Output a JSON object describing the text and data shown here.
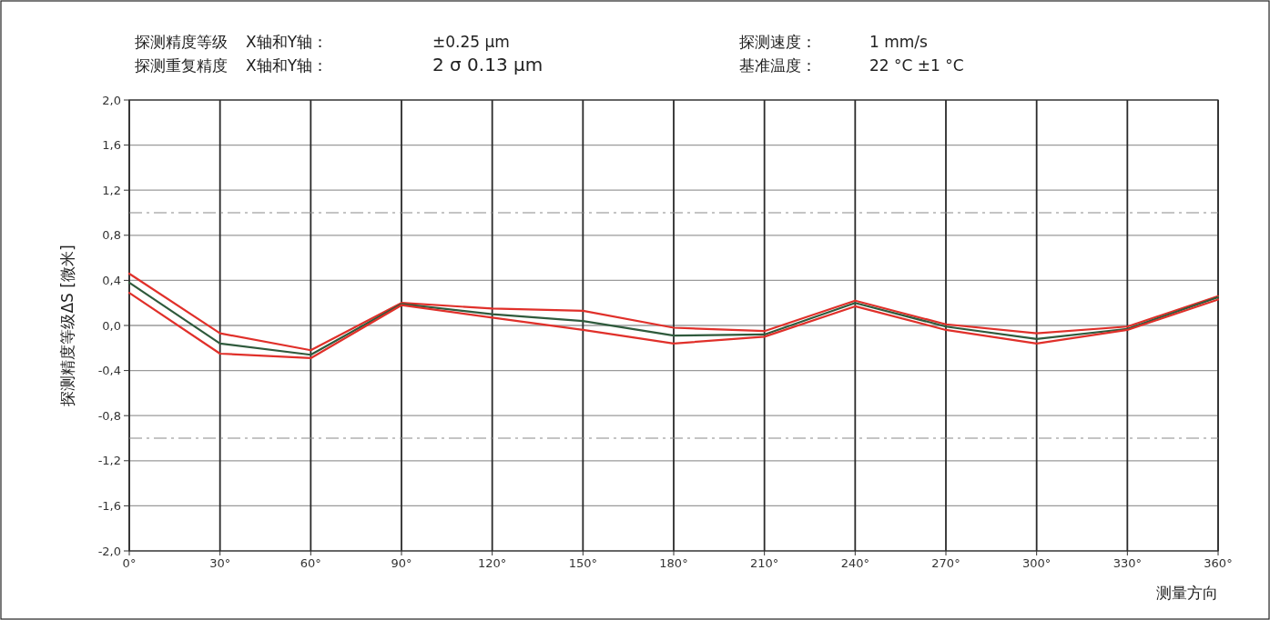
{
  "chart_data": {
    "type": "line",
    "xlabel": "测量方向",
    "ylabel": "探测精度等级ΔS [微米]",
    "annotations": [
      "探测精度等级",
      "X轴和Y轴：",
      "±0.25 µm",
      "探测速度：",
      "1 mm/s",
      "探测重复精度",
      "X轴和Y轴：",
      "2 σ 0.13 µm",
      "基准温度：",
      "22 °C ±1 °C"
    ],
    "x": [
      0,
      30,
      60,
      90,
      120,
      150,
      180,
      210,
      240,
      270,
      300,
      330,
      360
    ],
    "series": [
      {
        "color": "#e0302a",
        "values": [
          0.46,
          -0.07,
          -0.22,
          0.2,
          0.15,
          0.13,
          -0.02,
          -0.05,
          0.22,
          0.01,
          -0.07,
          -0.01,
          0.26
        ]
      },
      {
        "color": "#2f5a3c",
        "values": [
          0.38,
          -0.16,
          -0.26,
          0.19,
          0.1,
          0.04,
          -0.09,
          -0.08,
          0.2,
          -0.01,
          -0.12,
          -0.03,
          0.25
        ]
      },
      {
        "color": "#e0302a",
        "values": [
          0.29,
          -0.25,
          -0.29,
          0.18,
          0.07,
          -0.04,
          -0.16,
          -0.1,
          0.17,
          -0.04,
          -0.16,
          -0.04,
          0.23
        ]
      }
    ],
    "xlim": [
      0,
      360
    ],
    "xticks": [
      {
        "value": 0,
        "label": "0°"
      },
      {
        "value": 30,
        "label": "30°"
      },
      {
        "value": 60,
        "label": "60°"
      },
      {
        "value": 90,
        "label": "90°"
      },
      {
        "value": 120,
        "label": "120°"
      },
      {
        "value": 150,
        "label": "150°"
      },
      {
        "value": 180,
        "label": "180°"
      },
      {
        "value": 210,
        "label": "210°"
      },
      {
        "value": 240,
        "label": "240°"
      },
      {
        "value": 270,
        "label": "270°"
      },
      {
        "value": 300,
        "label": "300°"
      },
      {
        "value": 330,
        "label": "330°"
      },
      {
        "value": 360,
        "label": "360°"
      }
    ],
    "ylim": [
      -2.0,
      2.0
    ],
    "yticks": [
      {
        "value": -2.0,
        "label": "-2,0"
      },
      {
        "value": -1.6,
        "label": "-1,6"
      },
      {
        "value": -1.2,
        "label": "-1,2"
      },
      {
        "value": -0.8,
        "label": "-0,8"
      },
      {
        "value": -0.4,
        "label": "-0,4"
      },
      {
        "value": 0.0,
        "label": "0,0"
      },
      {
        "value": 0.4,
        "label": "0,4"
      },
      {
        "value": 0.8,
        "label": "0,8"
      },
      {
        "value": 1.2,
        "label": "1,2"
      },
      {
        "value": 1.6,
        "label": "1,6"
      },
      {
        "value": 2.0,
        "label": "2,0"
      }
    ],
    "ref_lines": [
      {
        "axis": "y",
        "value": 1.0,
        "color": "#8a8a8a",
        "line_style": "dashed"
      },
      {
        "axis": "y",
        "value": -1.0,
        "color": "#8a8a8a",
        "line_style": "dashed"
      }
    ],
    "grid": true,
    "marker": "none",
    "line_style": "solid"
  }
}
